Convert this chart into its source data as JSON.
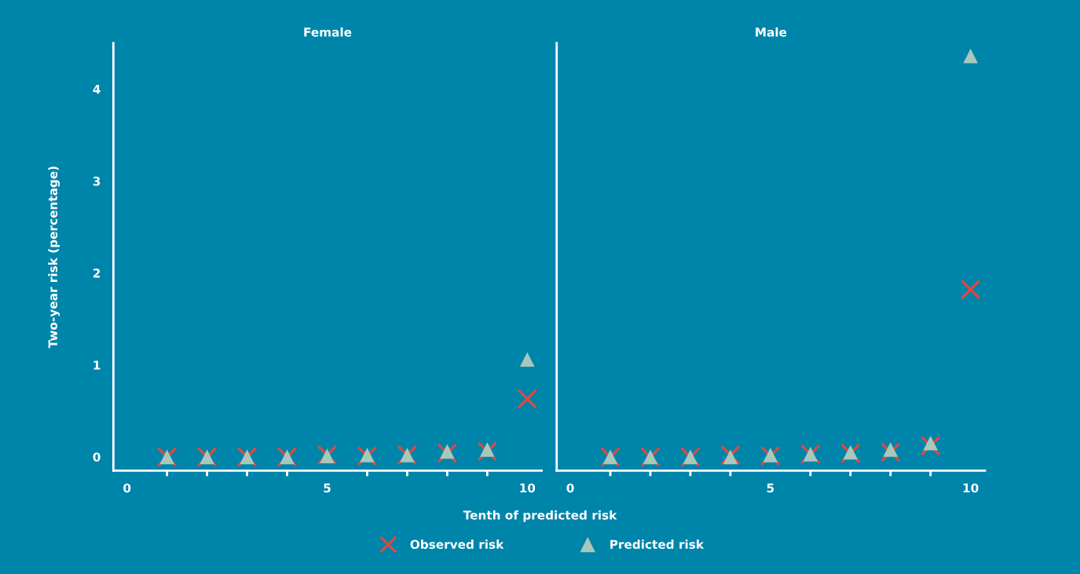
{
  "chart_data": [
    {
      "type": "scatter",
      "title": "Female",
      "xlabel": "Tenth of predicted risk",
      "ylabel": "Two-year risk (percentage)",
      "legend": "bottom",
      "x": [
        1,
        2,
        3,
        4,
        5,
        6,
        7,
        8,
        9,
        10
      ],
      "series": [
        {
          "name": "Observed risk",
          "color": "#e8463c",
          "marker": "cross",
          "values": [
            0,
            0,
            0,
            0,
            0.02,
            0.01,
            0.02,
            0.04,
            0.06,
            0.63
          ]
        },
        {
          "name": "Predicted risk",
          "color": "#a8c8bc",
          "marker": "triangle",
          "values": [
            0,
            0,
            0,
            0,
            0.01,
            0.02,
            0.02,
            0.06,
            0.08,
            1.06
          ]
        }
      ],
      "xlim": [
        -0.34,
        10.36
      ],
      "ylim": [
        -0.15,
        4.5
      ],
      "xticks": [
        0,
        {
          "value": 1,
          "label": null
        },
        {
          "value": 2,
          "label": null
        },
        {
          "value": 3,
          "label": null
        },
        {
          "value": 4,
          "label": null
        },
        5,
        {
          "value": 6,
          "label": null
        },
        {
          "value": 7,
          "label": null
        },
        {
          "value": 8,
          "label": null
        },
        {
          "value": 9,
          "label": null
        },
        10
      ],
      "yticks": [
        0,
        1,
        2,
        3,
        4
      ],
      "grid": false
    },
    {
      "type": "scatter",
      "title": "Male",
      "tick_labels": "x",
      "x": [
        1,
        2,
        3,
        4,
        5,
        6,
        7,
        8,
        9,
        10
      ],
      "series": [
        {
          "name": "Observed risk",
          "color": "#e8463c",
          "marker": "cross",
          "values": [
            0,
            0,
            0,
            0.02,
            0.01,
            0.03,
            0.04,
            0.05,
            0.12,
            1.82
          ]
        },
        {
          "name": "Predicted risk",
          "color": "#a8c8bc",
          "marker": "triangle",
          "values": [
            0,
            0,
            0,
            0,
            0.02,
            0.03,
            0.05,
            0.08,
            0.15,
            4.36
          ]
        }
      ],
      "xlim": [
        -0.34,
        10.36
      ],
      "ylim": [
        -0.15,
        4.5
      ],
      "xticks": [
        0,
        {
          "value": 1,
          "label": null
        },
        {
          "value": 2,
          "label": null
        },
        {
          "value": 3,
          "label": null
        },
        {
          "value": 4,
          "label": null
        },
        5,
        {
          "value": 6,
          "label": null
        },
        {
          "value": 7,
          "label": null
        },
        {
          "value": 8,
          "label": null
        },
        {
          "value": 9,
          "label": null
        },
        10
      ],
      "yticks": [
        0,
        1,
        2,
        3,
        4
      ],
      "grid": false
    }
  ]
}
